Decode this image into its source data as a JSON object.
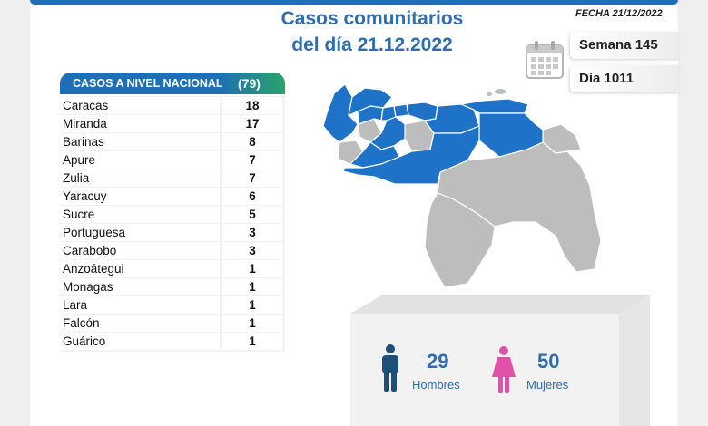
{
  "header": {
    "title_line1": "Casos comunitarios",
    "title_line2": "del día 21.12.2022",
    "fecha": "FECHA 21/12/2022",
    "semana": "Semana 145",
    "dia": "Día 1011"
  },
  "table": {
    "title": "CASOS A NIVEL NACIONAL",
    "total": "(79)",
    "rows": [
      {
        "state": "Caracas",
        "cases": 18
      },
      {
        "state": "Miranda",
        "cases": 17
      },
      {
        "state": "Barinas",
        "cases": 8
      },
      {
        "state": "Apure",
        "cases": 7
      },
      {
        "state": "Zulia",
        "cases": 7
      },
      {
        "state": "Yaracuy",
        "cases": 6
      },
      {
        "state": "Sucre",
        "cases": 5
      },
      {
        "state": "Portuguesa",
        "cases": 3
      },
      {
        "state": "Carabobo",
        "cases": 3
      },
      {
        "state": "Anzoátegui",
        "cases": 1
      },
      {
        "state": "Monagas",
        "cases": 1
      },
      {
        "state": "Lara",
        "cases": 1
      },
      {
        "state": "Falcón",
        "cases": 1
      },
      {
        "state": "Guárico",
        "cases": 1
      }
    ]
  },
  "gender": {
    "men_count": "29",
    "men_label": "Hombres",
    "women_count": "50",
    "women_label": "Mujeres"
  },
  "colors": {
    "blue": "#1d6fb6",
    "title_blue": "#2e6db4",
    "green": "#2aa36b",
    "map_affected": "#1e73c9",
    "map_unaffected": "#bdbdbd",
    "men_icon": "#1f4e79",
    "women_icon": "#e052a8"
  },
  "icons": {
    "calendar": "calendar-icon",
    "men": "man-icon",
    "women": "woman-icon"
  }
}
